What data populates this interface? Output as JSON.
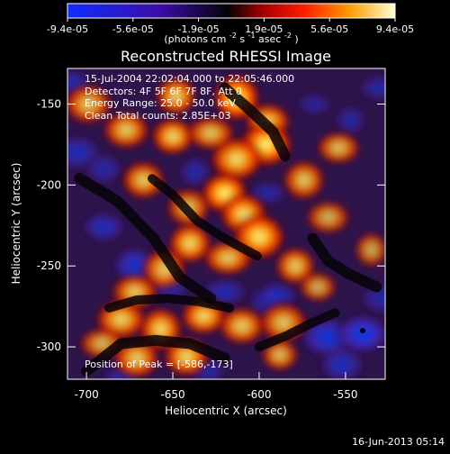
{
  "chart_data": {
    "type": "heatmap",
    "title": "Reconstructed RHESSI Image",
    "colorbar": {
      "ticks": [
        "-9.4e-05",
        "-5.6e-05",
        "-1.9e-05",
        "1.9e-05",
        "5.6e-05",
        "9.4e-05"
      ],
      "unit_prefix": "(photons cm",
      "unit_exp1": "-2",
      "unit_mid": " s",
      "unit_exp2": "-1",
      "unit_mid2": " asec",
      "unit_exp3": "-2",
      "unit_suffix": ")",
      "range": [
        -9.4e-05,
        9.4e-05
      ]
    },
    "xlabel": "Heliocentric X (arcsec)",
    "ylabel": "Heliocentric Y (arcsec)",
    "xticks": [
      "-700",
      "-650",
      "-600",
      "-550"
    ],
    "yticks": [
      "-150",
      "-200",
      "-250",
      "-300"
    ],
    "xlim": [
      -711,
      -527
    ],
    "ylim": [
      -320,
      -128
    ],
    "annotation_lines": [
      "15-Jul-2004 22:02:04.000 to 22:05:46.000",
      "Detectors: 4F 5F 6F 7F 8F, Att 0",
      "Energy Range: 25.0 - 50.0 keV",
      "Clean     Total counts: 2.85E+03"
    ],
    "peak_label": "Position of Peak = [-586,-173]",
    "peak_position": [
      -586,
      -173
    ],
    "min_marker": [
      -540,
      -290
    ],
    "footer_date": "16-Jun-2013 05:14",
    "hotspots": [
      {
        "x": -613,
        "y": -146,
        "v": 1.0
      },
      {
        "x": -595,
        "y": -161,
        "v": 0.85
      },
      {
        "x": -596,
        "y": -175,
        "v": 1.0
      },
      {
        "x": -613,
        "y": -184,
        "v": 0.85
      },
      {
        "x": -620,
        "y": -205,
        "v": 1.0
      },
      {
        "x": -609,
        "y": -218,
        "v": 0.9
      },
      {
        "x": -600,
        "y": -232,
        "v": 0.95
      },
      {
        "x": -618,
        "y": -245,
        "v": 0.75
      },
      {
        "x": -640,
        "y": -236,
        "v": 0.85
      },
      {
        "x": -655,
        "y": -252,
        "v": 0.75
      },
      {
        "x": -672,
        "y": -266,
        "v": 0.75
      },
      {
        "x": -680,
        "y": -283,
        "v": 0.8
      },
      {
        "x": -657,
        "y": -289,
        "v": 0.85
      },
      {
        "x": -632,
        "y": -281,
        "v": 0.85
      },
      {
        "x": -610,
        "y": -287,
        "v": 0.75
      },
      {
        "x": -586,
        "y": -285,
        "v": 0.7
      },
      {
        "x": -588,
        "y": -305,
        "v": 0.65
      },
      {
        "x": -642,
        "y": -306,
        "v": 0.85
      },
      {
        "x": -671,
        "y": -307,
        "v": 0.75
      },
      {
        "x": -691,
        "y": -298,
        "v": 0.6
      },
      {
        "x": -579,
        "y": -250,
        "v": 0.75
      },
      {
        "x": -574,
        "y": -197,
        "v": 0.7
      },
      {
        "x": -554,
        "y": -177,
        "v": 0.65
      },
      {
        "x": -560,
        "y": -220,
        "v": 0.55
      },
      {
        "x": -535,
        "y": -240,
        "v": 0.5
      },
      {
        "x": -566,
        "y": -263,
        "v": 0.55
      },
      {
        "x": -677,
        "y": -166,
        "v": 0.75
      },
      {
        "x": -699,
        "y": -150,
        "v": 0.7
      },
      {
        "x": -650,
        "y": -170,
        "v": 0.85
      },
      {
        "x": -667,
        "y": -197,
        "v": 0.75
      },
      {
        "x": -641,
        "y": -214,
        "v": 0.65
      },
      {
        "x": -628,
        "y": -168,
        "v": 0.7
      },
      {
        "x": -648,
        "y": -145,
        "v": 0.8
      }
    ],
    "coldspots": [
      {
        "x": -672,
        "y": -250,
        "v": -0.7
      },
      {
        "x": -690,
        "y": -226,
        "v": -0.55
      },
      {
        "x": -705,
        "y": -180,
        "v": -0.5
      },
      {
        "x": -708,
        "y": -137,
        "v": -0.45
      },
      {
        "x": -652,
        "y": -262,
        "v": -0.45
      },
      {
        "x": -620,
        "y": -266,
        "v": -0.45
      },
      {
        "x": -596,
        "y": -272,
        "v": -0.4
      },
      {
        "x": -589,
        "y": -268,
        "v": -0.45
      },
      {
        "x": -560,
        "y": -294,
        "v": -0.8
      },
      {
        "x": -540,
        "y": -292,
        "v": -1.0
      },
      {
        "x": -552,
        "y": -311,
        "v": -0.55
      },
      {
        "x": -530,
        "y": -140,
        "v": -0.35
      },
      {
        "x": -547,
        "y": -160,
        "v": -0.3
      },
      {
        "x": -568,
        "y": -150,
        "v": -0.25
      },
      {
        "x": -529,
        "y": -270,
        "v": -0.35
      },
      {
        "x": -680,
        "y": -320,
        "v": -0.45
      },
      {
        "x": -690,
        "y": -190,
        "v": -0.35
      },
      {
        "x": -595,
        "y": -205,
        "v": -0.3
      },
      {
        "x": -637,
        "y": -192,
        "v": -0.35
      },
      {
        "x": -630,
        "y": -315,
        "v": -0.35
      }
    ],
    "colors": {
      "background": "#000000",
      "text": "#ffffff",
      "grid": "none",
      "colorbar_low": "#1638ff",
      "colorbar_mid": "#0b0611",
      "colorbar_high": "#fff78a",
      "min_marker": "#000000"
    }
  }
}
